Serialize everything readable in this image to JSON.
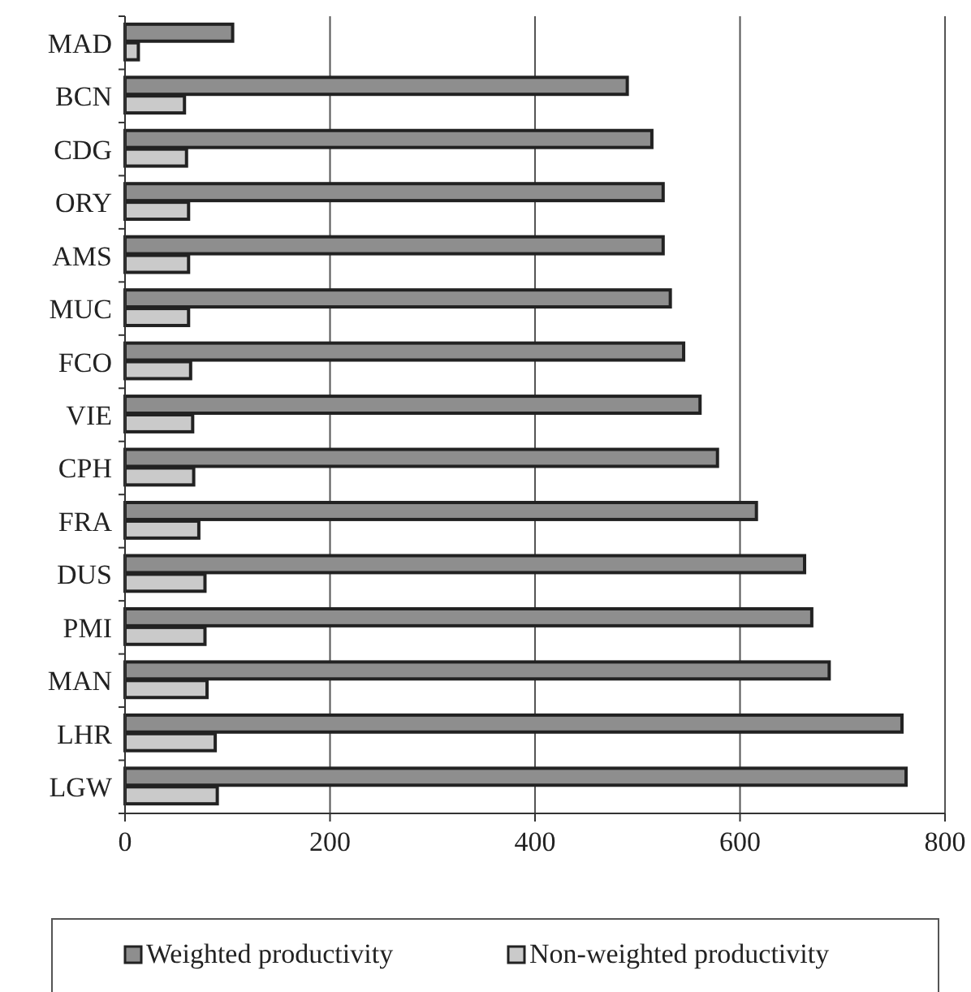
{
  "chart_data": {
    "type": "bar",
    "orientation": "horizontal",
    "categories": [
      "MAD",
      "BCN",
      "CDG",
      "ORY",
      "AMS",
      "MUC",
      "FCO",
      "VIE",
      "CPH",
      "FRA",
      "DUS",
      "PMI",
      "MAN",
      "LHR",
      "LGW"
    ],
    "series": [
      {
        "name": "Weighted productivity",
        "color": "#8e8e8e",
        "values": [
          105,
          490,
          514,
          525,
          525,
          532,
          545,
          561,
          578,
          616,
          663,
          670,
          687,
          758,
          762
        ]
      },
      {
        "name": "Non-weighted productivity",
        "color": "#cacaca",
        "values": [
          13,
          58,
          60,
          62,
          62,
          62,
          64,
          66,
          67,
          72,
          78,
          78,
          80,
          88,
          90
        ]
      }
    ],
    "xlim": [
      0,
      800
    ],
    "xticks": [
      0,
      200,
      400,
      600,
      800
    ],
    "grid": "x",
    "legend": "bottom"
  }
}
